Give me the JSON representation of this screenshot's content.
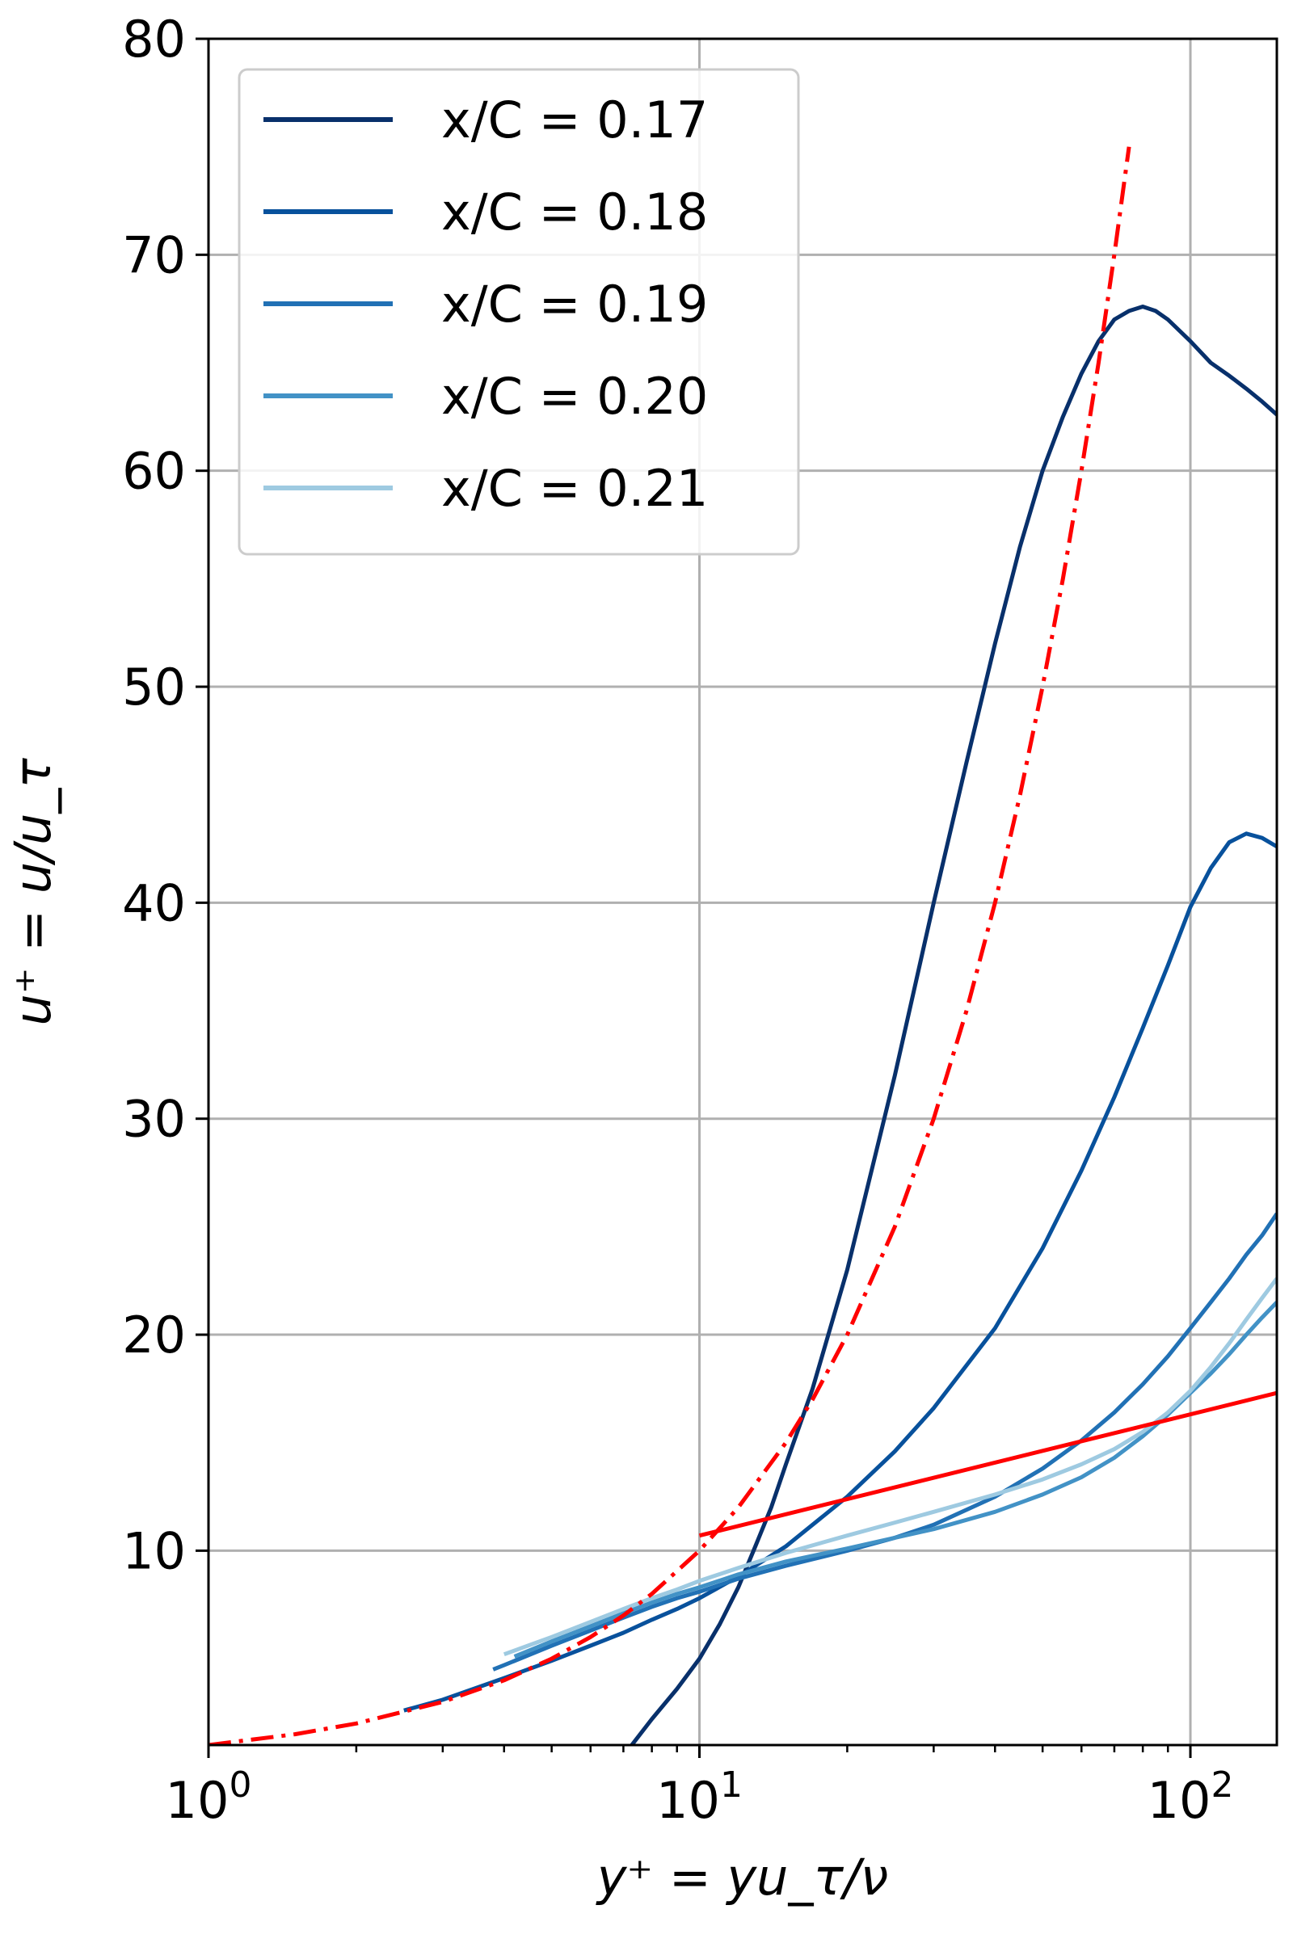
{
  "chart_data": {
    "type": "line",
    "title": "",
    "xlabel": "y⁺ = yu_τ/ν",
    "ylabel": "u⁺ = u/u_τ",
    "xscale": "log",
    "xlim": [
      1,
      150
    ],
    "ylim": [
      1,
      80
    ],
    "x_ticks": [
      {
        "value": 1,
        "base": "10",
        "exp": "0"
      },
      {
        "value": 10,
        "base": "10",
        "exp": "1"
      },
      {
        "value": 100,
        "base": "10",
        "exp": "2"
      }
    ],
    "y_ticks": [
      {
        "value": 10,
        "label": "10"
      },
      {
        "value": 20,
        "label": "20"
      },
      {
        "value": 30,
        "label": "30"
      },
      {
        "value": 40,
        "label": "40"
      },
      {
        "value": 50,
        "label": "50"
      },
      {
        "value": 60,
        "label": "60"
      },
      {
        "value": 70,
        "label": "70"
      },
      {
        "value": 80,
        "label": "80"
      }
    ],
    "grid": true,
    "legend_position": "top-left",
    "series": [
      {
        "name": "x/C = 0.17",
        "color": "#08306b",
        "x": [
          7,
          8,
          9,
          10,
          11,
          12,
          13,
          14,
          15,
          17,
          20,
          25,
          30,
          35,
          40,
          45,
          50,
          55,
          60,
          65,
          70,
          75,
          80,
          85,
          90,
          100,
          110,
          120,
          130,
          140,
          150
        ],
        "y": [
          0.5,
          2.2,
          3.6,
          5,
          6.6,
          8.3,
          10.2,
          12,
          14,
          17.5,
          23,
          32,
          40,
          46.5,
          52,
          56.5,
          60,
          62.5,
          64.5,
          66,
          67,
          67.4,
          67.6,
          67.4,
          67,
          66,
          65,
          64.4,
          63.8,
          63.2,
          62.6
        ]
      },
      {
        "name": "x/C = 0.18",
        "color": "#08519c",
        "x": [
          2.5,
          3,
          4,
          5,
          6,
          7,
          8,
          9,
          10,
          12,
          15,
          20,
          25,
          30,
          40,
          50,
          60,
          70,
          80,
          90,
          100,
          110,
          120,
          130,
          140,
          150
        ],
        "y": [
          2.6,
          3.1,
          4.1,
          4.9,
          5.6,
          6.2,
          6.8,
          7.3,
          7.8,
          8.8,
          10.2,
          12.5,
          14.6,
          16.6,
          20.3,
          24,
          27.6,
          31,
          34.2,
          37.1,
          39.8,
          41.6,
          42.8,
          43.2,
          43,
          42.6
        ]
      },
      {
        "name": "x/C = 0.19",
        "color": "#2171b5",
        "x": [
          3.8,
          4,
          5,
          6,
          7,
          8,
          9,
          10,
          12,
          15,
          20,
          25,
          30,
          40,
          50,
          60,
          70,
          80,
          90,
          100,
          110,
          120,
          130,
          140,
          150
        ],
        "y": [
          4.5,
          4.7,
          5.6,
          6.3,
          6.9,
          7.4,
          7.8,
          8.1,
          8.7,
          9.3,
          10,
          10.6,
          11.2,
          12.5,
          13.8,
          15.1,
          16.4,
          17.7,
          19,
          20.3,
          21.5,
          22.6,
          23.7,
          24.6,
          25.6
        ]
      },
      {
        "name": "x/C = 0.20",
        "color": "#4292c6",
        "x": [
          4.2,
          5,
          6,
          7,
          8,
          9,
          10,
          12,
          15,
          20,
          25,
          30,
          40,
          50,
          60,
          70,
          80,
          90,
          100,
          110,
          120,
          130,
          140,
          150
        ],
        "y": [
          5.1,
          5.8,
          6.5,
          7.1,
          7.6,
          8,
          8.3,
          8.9,
          9.5,
          10.1,
          10.6,
          11,
          11.8,
          12.6,
          13.4,
          14.3,
          15.3,
          16.3,
          17.3,
          18.2,
          19.1,
          20,
          20.8,
          21.5
        ]
      },
      {
        "name": "x/C = 0.21",
        "color": "#9ecae1",
        "x": [
          4,
          5,
          6,
          7,
          8,
          9,
          10,
          12,
          15,
          20,
          25,
          30,
          40,
          50,
          60,
          70,
          80,
          90,
          100,
          110,
          120,
          130,
          140,
          150
        ],
        "y": [
          5.2,
          6,
          6.7,
          7.3,
          7.8,
          8.2,
          8.6,
          9.2,
          9.9,
          10.7,
          11.3,
          11.8,
          12.6,
          13.3,
          14,
          14.7,
          15.5,
          16.4,
          17.4,
          18.5,
          19.6,
          20.7,
          21.7,
          22.6
        ]
      },
      {
        "name": "",
        "color": "#ff0000",
        "dash": "dash-dot",
        "x": [
          1,
          1.5,
          2,
          3,
          4,
          5,
          6,
          7,
          8,
          10,
          12,
          15,
          17,
          20,
          25,
          30,
          35,
          40,
          45,
          50,
          55,
          60,
          65,
          70,
          75
        ],
        "y": [
          1,
          1.5,
          2,
          3,
          4,
          5,
          6,
          7,
          8,
          10,
          12,
          15,
          17,
          20,
          25,
          30,
          35,
          40,
          45,
          50,
          55,
          60,
          65,
          70,
          75
        ]
      },
      {
        "name": "",
        "color": "#ff0000",
        "dash": "solid",
        "x": [
          10,
          150
        ],
        "y": [
          10.7,
          17.3
        ]
      }
    ]
  }
}
